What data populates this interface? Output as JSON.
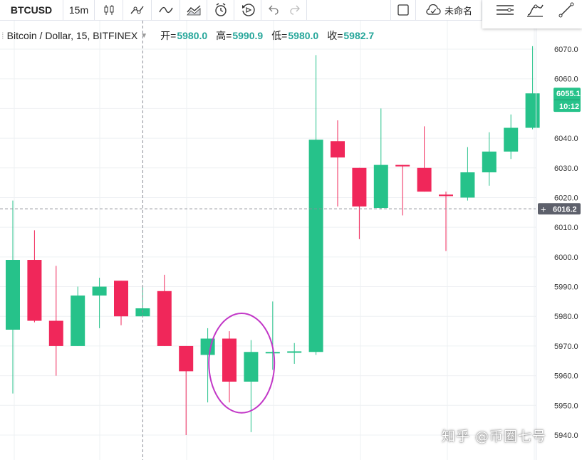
{
  "toolbar": {
    "symbol": "BTCUSD",
    "interval": "15m",
    "layout_name": "未命名",
    "icons": [
      "candles-icon",
      "indicators-icon",
      "line-icon",
      "compare-icon",
      "alert-icon",
      "replay-icon",
      "undo-icon",
      "redo-icon"
    ]
  },
  "legend": {
    "title": "Bitcoin / Dollar, 15, BITFINEX",
    "open_label": "开=",
    "open_value": "5980.0",
    "high_label": "高=",
    "high_value": "5990.9",
    "low_label": "低=",
    "low_value": "5980.0",
    "close_label": "收=",
    "close_value": "5982.7"
  },
  "colors": {
    "up": "#26c28a",
    "down": "#f0275a",
    "annotation": "#c238c7",
    "price_tag": "#26c28a",
    "crosshair_tag": "#5d606b"
  },
  "watermark": "知乎 @币圈七号",
  "chart_data": {
    "type": "candlestick",
    "ylim": [
      5940,
      6075
    ],
    "y_ticks": [
      "6070.0",
      "6060.0",
      "6050.0",
      "6040.0",
      "6030.0",
      "6020.0",
      "6010.0",
      "6000.0",
      "5990.0",
      "5980.0",
      "5970.0",
      "5960.0",
      "5950.0",
      "5940.0"
    ],
    "candles": [
      {
        "o": 5975.5,
        "h": 6019.0,
        "l": 5954.0,
        "c": 5999.0
      },
      {
        "o": 5999.0,
        "h": 6009.0,
        "l": 5978.0,
        "c": 5978.5
      },
      {
        "o": 5978.5,
        "h": 5997.0,
        "l": 5960.0,
        "c": 5970.0
      },
      {
        "o": 5970.0,
        "h": 5990.0,
        "l": 5970.0,
        "c": 5987.0
      },
      {
        "o": 5987.0,
        "h": 5993.0,
        "l": 5976.0,
        "c": 5990.0
      },
      {
        "o": 5992.0,
        "h": 5992.0,
        "l": 5977.0,
        "c": 5980.0
      },
      {
        "o": 5980.0,
        "h": 5990.0,
        "l": 5980.0,
        "c": 5982.7
      },
      {
        "o": 5988.5,
        "h": 5994.0,
        "l": 5970.0,
        "c": 5970.0
      },
      {
        "o": 5970.0,
        "h": 5970.0,
        "l": 5940.0,
        "c": 5961.5
      },
      {
        "o": 5967.0,
        "h": 5976.0,
        "l": 5951.0,
        "c": 5972.5
      },
      {
        "o": 5972.5,
        "h": 5975.0,
        "l": 5951.0,
        "c": 5958.0
      },
      {
        "o": 5958.0,
        "h": 5972.0,
        "l": 5941.0,
        "c": 5968.0
      },
      {
        "o": 5968.0,
        "h": 5985.0,
        "l": 5962.0,
        "c": 5968.0
      },
      {
        "o": 5968.0,
        "h": 5971.0,
        "l": 5964.0,
        "c": 5968.2
      },
      {
        "o": 5968.0,
        "h": 6068.0,
        "l": 5967.0,
        "c": 6039.5
      },
      {
        "o": 6039.0,
        "h": 6046.0,
        "l": 6017.0,
        "c": 6033.5
      },
      {
        "o": 6030.0,
        "h": 6030.0,
        "l": 6006.0,
        "c": 6017.0
      },
      {
        "o": 6016.5,
        "h": 6050.0,
        "l": 6016.0,
        "c": 6031.0
      },
      {
        "o": 6031.0,
        "h": 6031.0,
        "l": 6014.0,
        "c": 6030.5
      },
      {
        "o": 6030.0,
        "h": 6044.0,
        "l": 6022.0,
        "c": 6022.0
      },
      {
        "o": 6021.0,
        "h": 6022.0,
        "l": 6002.0,
        "c": 6020.5
      },
      {
        "o": 6020.0,
        "h": 6037.0,
        "l": 6019.0,
        "c": 6028.5
      },
      {
        "o": 6028.5,
        "h": 6042.0,
        "l": 6024.0,
        "c": 6035.5
      },
      {
        "o": 6035.5,
        "h": 6048.0,
        "l": 6033.0,
        "c": 6043.5
      },
      {
        "o": 6043.5,
        "h": 6071.0,
        "l": 6043.0,
        "c": 6055.1
      }
    ],
    "last_price": {
      "value": 6055.1,
      "label": "6055.1",
      "countdown": "10:12"
    },
    "crosshair": {
      "price": 6016.2,
      "label": "6016.2",
      "candle_index": 6
    },
    "annotation": {
      "shape": "ellipse",
      "candle_index": 11,
      "y_from": 5947.5,
      "y_to": 5981.0
    }
  }
}
